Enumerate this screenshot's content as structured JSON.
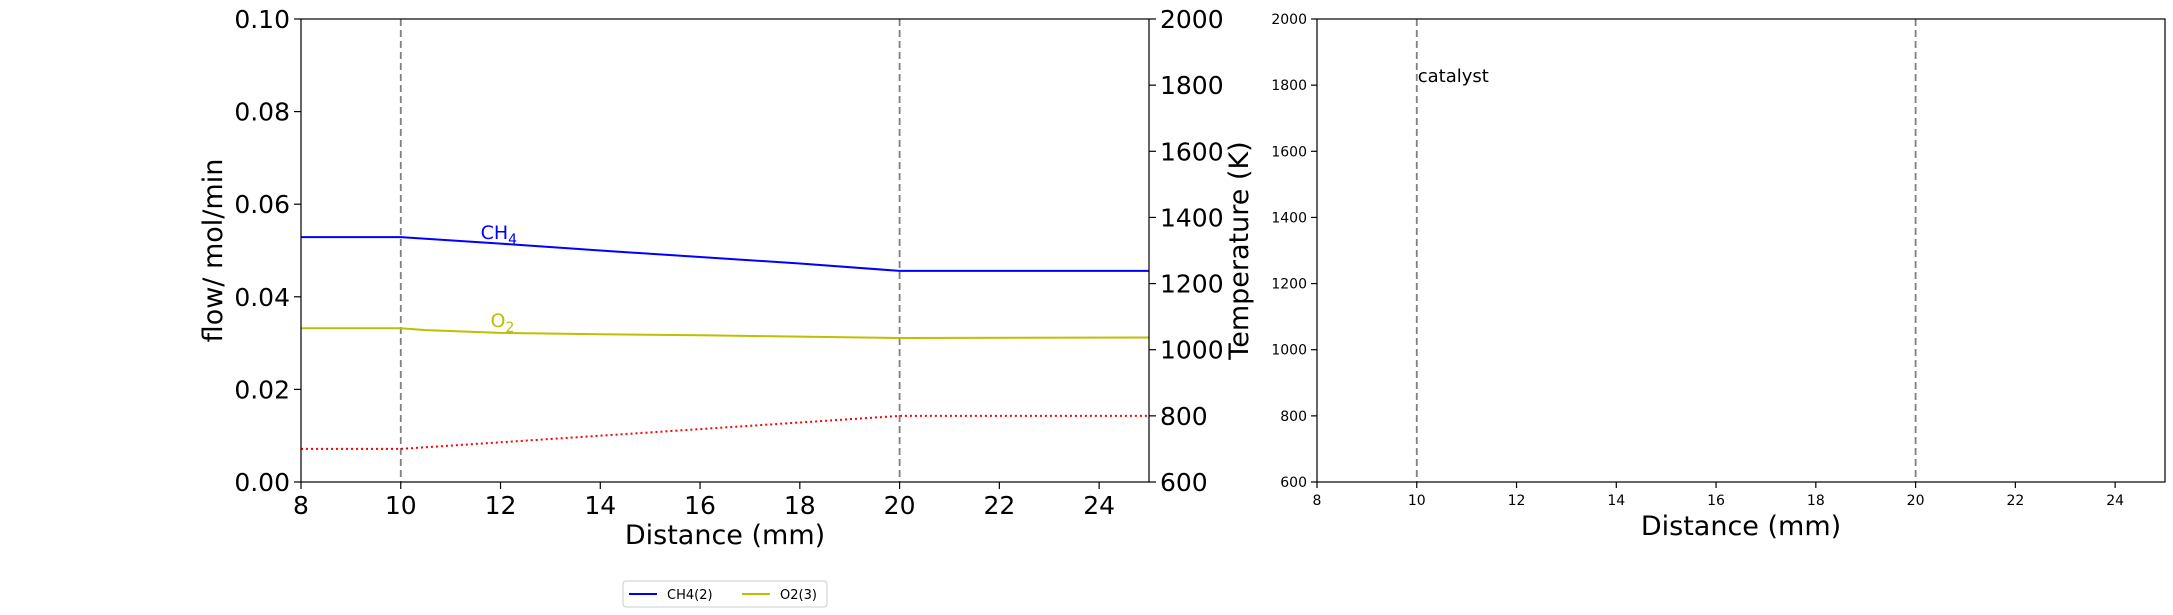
{
  "chart_data": [
    {
      "type": "line",
      "panel": "left",
      "title": "",
      "xlabel": "Distance (mm)",
      "ylabel": "flow/ mol/min",
      "y2label": "Temperature (K)",
      "xlim": [
        8,
        25
      ],
      "ylim": [
        0,
        0.1
      ],
      "y2lim": [
        600,
        2000
      ],
      "xticks": [
        8,
        10,
        12,
        14,
        16,
        18,
        20,
        22,
        24
      ],
      "yticks": [
        0.0,
        0.02,
        0.04,
        0.06,
        0.08,
        0.1
      ],
      "ytick_labels": [
        "0.00",
        "0.02",
        "0.04",
        "0.06",
        "0.08",
        "0.10"
      ],
      "y2ticks": [
        600,
        800,
        1000,
        1200,
        1400,
        1600,
        1800,
        2000
      ],
      "vlines": [
        10,
        20
      ],
      "grid": false,
      "series": [
        {
          "name": "CH4(2)",
          "label": "CH",
          "label_sub": "4",
          "color": "#0000ff",
          "style": "solid",
          "axis": "left",
          "label_at": [
            11.6,
            0.0525
          ],
          "x": [
            8,
            10,
            12,
            14,
            16,
            18,
            20,
            25
          ],
          "y": [
            0.0529,
            0.0529,
            0.0515,
            0.05,
            0.0486,
            0.0472,
            0.0456,
            0.0456
          ]
        },
        {
          "name": "O2(3)",
          "label": "O",
          "label_sub": "2",
          "color": "#bfbf00",
          "style": "solid",
          "axis": "left",
          "label_at": [
            11.8,
            0.0335
          ],
          "x": [
            8,
            10,
            10.5,
            12,
            14,
            16,
            18,
            20,
            25
          ],
          "y": [
            0.0332,
            0.0332,
            0.0328,
            0.0322,
            0.0319,
            0.0317,
            0.0314,
            0.0311,
            0.0312
          ]
        },
        {
          "name": "Temperature",
          "color": "#ff0000",
          "style": "dotted",
          "axis": "right",
          "x": [
            8,
            10,
            12,
            14,
            16,
            18,
            20,
            25
          ],
          "y": [
            700,
            700,
            720,
            740,
            760,
            780,
            800,
            800
          ]
        }
      ],
      "legend": {
        "placement": "bottom-center",
        "entries": [
          "CH4(2)",
          "O2(3)"
        ]
      }
    },
    {
      "type": "line",
      "panel": "right",
      "title": "",
      "xlabel": "Distance (mm)",
      "ylabel": "",
      "xlim": [
        8,
        25
      ],
      "ylim": [
        600,
        2000
      ],
      "xticks": [
        8,
        10,
        12,
        14,
        16,
        18,
        20,
        22,
        24
      ],
      "yticks": [
        600,
        800,
        1000,
        1200,
        1400,
        1600,
        1800,
        2000
      ],
      "vlines": [
        10,
        20
      ],
      "grid": false,
      "annotations": [
        {
          "text": "catalyst",
          "x": 10,
          "y": 1800
        }
      ],
      "series": []
    }
  ]
}
